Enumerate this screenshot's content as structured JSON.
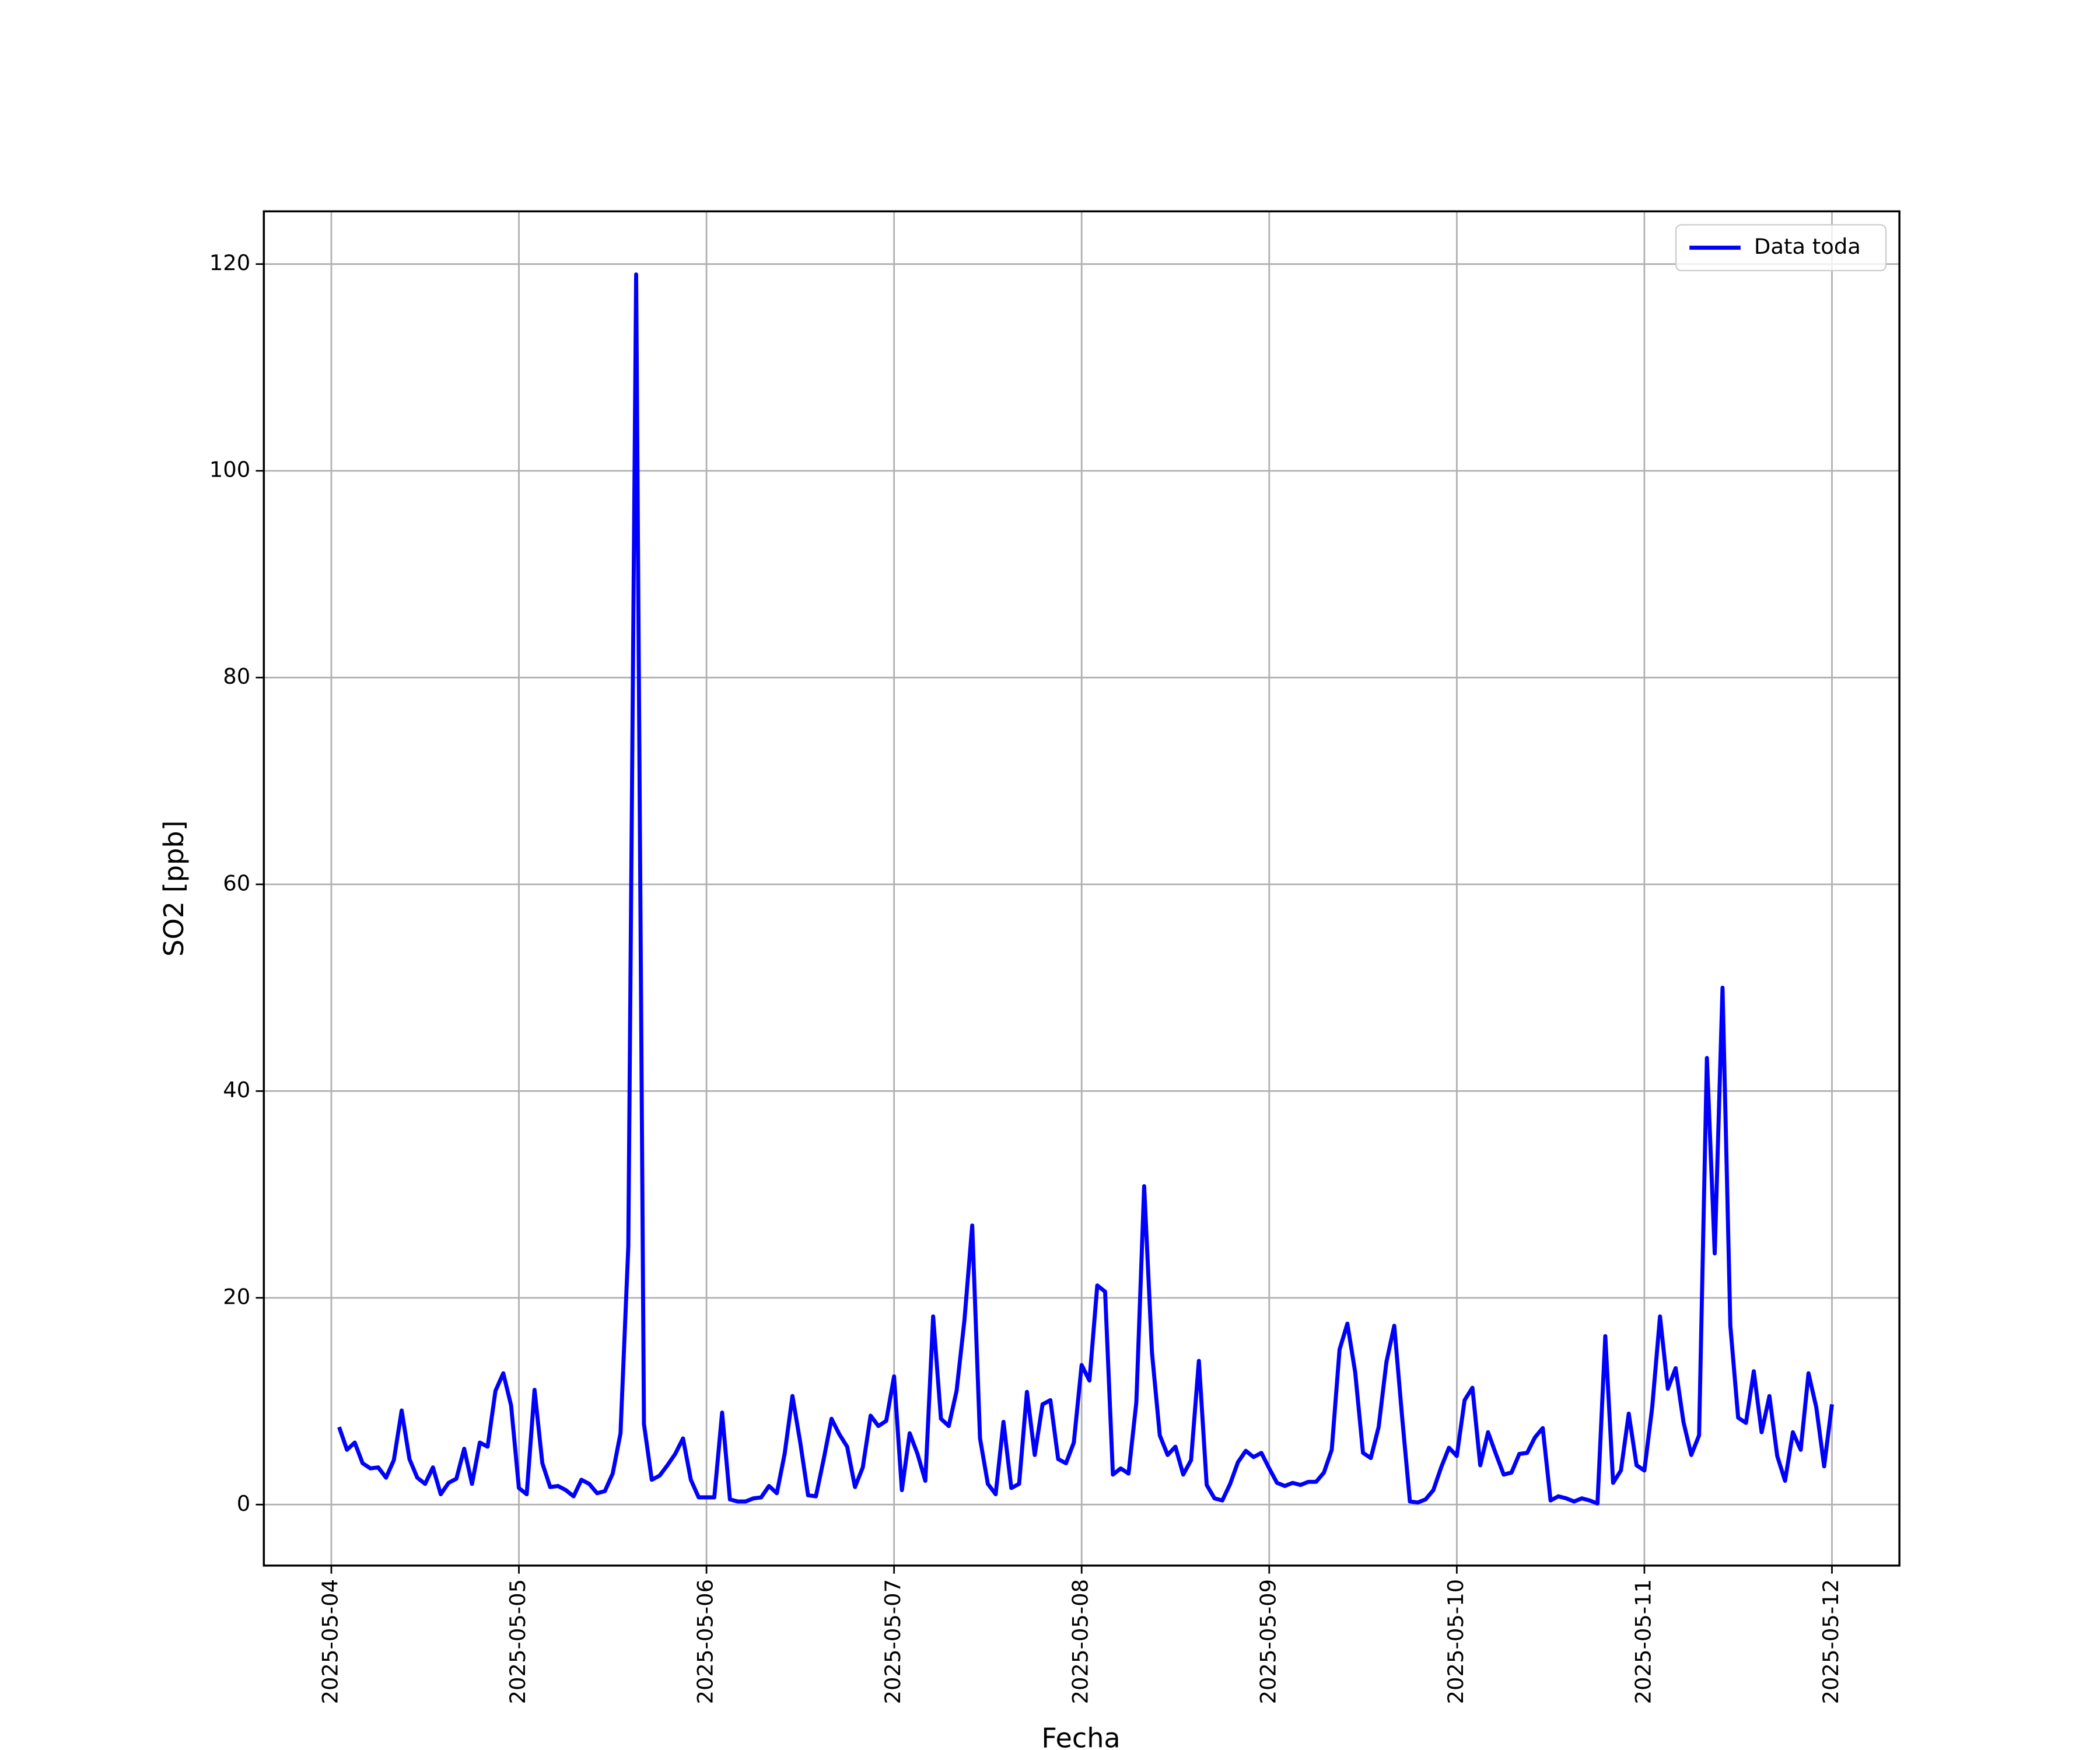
{
  "chart_data": {
    "type": "line",
    "x_label": "Fecha",
    "y_label": "SO2 [ppb]",
    "x": [
      "2025-05-04T01:00",
      "2025-05-04T02:00",
      "2025-05-04T03:00",
      "2025-05-04T04:00",
      "2025-05-04T05:00",
      "2025-05-04T06:00",
      "2025-05-04T07:00",
      "2025-05-04T08:00",
      "2025-05-04T09:00",
      "2025-05-04T10:00",
      "2025-05-04T11:00",
      "2025-05-04T12:00",
      "2025-05-04T13:00",
      "2025-05-04T14:00",
      "2025-05-04T15:00",
      "2025-05-04T16:00",
      "2025-05-04T17:00",
      "2025-05-04T18:00",
      "2025-05-04T19:00",
      "2025-05-04T20:00",
      "2025-05-04T21:00",
      "2025-05-04T22:00",
      "2025-05-04T23:00",
      "2025-05-05T00:00",
      "2025-05-05T01:00",
      "2025-05-05T02:00",
      "2025-05-05T03:00",
      "2025-05-05T04:00",
      "2025-05-05T05:00",
      "2025-05-05T06:00",
      "2025-05-05T07:00",
      "2025-05-05T08:00",
      "2025-05-05T09:00",
      "2025-05-05T10:00",
      "2025-05-05T11:00",
      "2025-05-05T12:00",
      "2025-05-05T13:00",
      "2025-05-05T14:00",
      "2025-05-05T15:00",
      "2025-05-05T16:00",
      "2025-05-05T17:00",
      "2025-05-05T18:00",
      "2025-05-05T19:00",
      "2025-05-05T20:00",
      "2025-05-05T21:00",
      "2025-05-05T22:00",
      "2025-05-05T23:00",
      "2025-05-06T00:00",
      "2025-05-06T01:00",
      "2025-05-06T02:00",
      "2025-05-06T03:00",
      "2025-05-06T04:00",
      "2025-05-06T05:00",
      "2025-05-06T06:00",
      "2025-05-06T07:00",
      "2025-05-06T08:00",
      "2025-05-06T09:00",
      "2025-05-06T10:00",
      "2025-05-06T11:00",
      "2025-05-06T12:00",
      "2025-05-06T13:00",
      "2025-05-06T14:00",
      "2025-05-06T15:00",
      "2025-05-06T16:00",
      "2025-05-06T17:00",
      "2025-05-06T18:00",
      "2025-05-06T19:00",
      "2025-05-06T20:00",
      "2025-05-06T21:00",
      "2025-05-06T22:00",
      "2025-05-06T23:00",
      "2025-05-07T00:00",
      "2025-05-07T01:00",
      "2025-05-07T02:00",
      "2025-05-07T03:00",
      "2025-05-07T04:00",
      "2025-05-07T05:00",
      "2025-05-07T06:00",
      "2025-05-07T07:00",
      "2025-05-07T08:00",
      "2025-05-07T09:00",
      "2025-05-07T10:00",
      "2025-05-07T11:00",
      "2025-05-07T12:00",
      "2025-05-07T13:00",
      "2025-05-07T14:00",
      "2025-05-07T15:00",
      "2025-05-07T16:00",
      "2025-05-07T17:00",
      "2025-05-07T18:00",
      "2025-05-07T19:00",
      "2025-05-07T20:00",
      "2025-05-07T21:00",
      "2025-05-07T22:00",
      "2025-05-07T23:00",
      "2025-05-08T00:00",
      "2025-05-08T01:00",
      "2025-05-08T02:00",
      "2025-05-08T03:00",
      "2025-05-08T04:00",
      "2025-05-08T05:00",
      "2025-05-08T06:00",
      "2025-05-08T07:00",
      "2025-05-08T08:00",
      "2025-05-08T09:00",
      "2025-05-08T10:00",
      "2025-05-08T11:00",
      "2025-05-08T12:00",
      "2025-05-08T13:00",
      "2025-05-08T14:00",
      "2025-05-08T15:00",
      "2025-05-08T16:00",
      "2025-05-08T17:00",
      "2025-05-08T18:00",
      "2025-05-08T19:00",
      "2025-05-08T20:00",
      "2025-05-08T21:00",
      "2025-05-08T22:00",
      "2025-05-08T23:00",
      "2025-05-09T00:00",
      "2025-05-09T01:00",
      "2025-05-09T02:00",
      "2025-05-09T03:00",
      "2025-05-09T04:00",
      "2025-05-09T05:00",
      "2025-05-09T06:00",
      "2025-05-09T07:00",
      "2025-05-09T08:00",
      "2025-05-09T09:00",
      "2025-05-09T10:00",
      "2025-05-09T11:00",
      "2025-05-09T12:00",
      "2025-05-09T13:00",
      "2025-05-09T14:00",
      "2025-05-09T15:00",
      "2025-05-09T16:00",
      "2025-05-09T17:00",
      "2025-05-09T18:00",
      "2025-05-09T19:00",
      "2025-05-09T20:00",
      "2025-05-09T21:00",
      "2025-05-09T22:00",
      "2025-05-09T23:00",
      "2025-05-10T00:00",
      "2025-05-10T01:00",
      "2025-05-10T02:00",
      "2025-05-10T03:00",
      "2025-05-10T04:00",
      "2025-05-10T05:00",
      "2025-05-10T06:00",
      "2025-05-10T07:00",
      "2025-05-10T08:00",
      "2025-05-10T09:00",
      "2025-05-10T10:00",
      "2025-05-10T11:00",
      "2025-05-10T12:00",
      "2025-05-10T13:00",
      "2025-05-10T14:00",
      "2025-05-10T15:00",
      "2025-05-10T16:00",
      "2025-05-10T17:00",
      "2025-05-10T18:00",
      "2025-05-10T19:00",
      "2025-05-10T20:00",
      "2025-05-10T21:00",
      "2025-05-10T22:00",
      "2025-05-10T23:00",
      "2025-05-11T00:00",
      "2025-05-11T01:00",
      "2025-05-11T02:00",
      "2025-05-11T03:00",
      "2025-05-11T04:00",
      "2025-05-11T05:00",
      "2025-05-11T06:00",
      "2025-05-11T07:00",
      "2025-05-11T08:00",
      "2025-05-11T09:00",
      "2025-05-11T10:00",
      "2025-05-11T11:00",
      "2025-05-11T12:00",
      "2025-05-11T13:00",
      "2025-05-11T14:00",
      "2025-05-11T15:00",
      "2025-05-11T16:00",
      "2025-05-11T17:00",
      "2025-05-11T18:00",
      "2025-05-11T19:00",
      "2025-05-11T20:00",
      "2025-05-11T21:00",
      "2025-05-11T22:00",
      "2025-05-11T23:00",
      "2025-05-12T00:00"
    ],
    "series": [
      {
        "name": "Data toda",
        "color": "#0000ff",
        "values": [
          7.5,
          5.3,
          6.0,
          4.0,
          3.5,
          3.6,
          2.6,
          4.3,
          9.1,
          4.4,
          2.6,
          2.0,
          3.6,
          1.0,
          2.1,
          2.5,
          5.4,
          2.0,
          6.0,
          5.6,
          11.0,
          12.7,
          9.6,
          1.6,
          1.0,
          11.1,
          4.0,
          1.7,
          1.8,
          1.4,
          0.8,
          2.4,
          2.0,
          1.1,
          1.3,
          3.0,
          6.9,
          25,
          119,
          7.8,
          2.4,
          2.8,
          3.8,
          4.9,
          6.4,
          2.4,
          0.7,
          0.7,
          0.7,
          8.9,
          0.5,
          0.3,
          0.3,
          0.6,
          0.7,
          1.8,
          1.1,
          4.9,
          10.5,
          6.0,
          0.9,
          0.8,
          4.4,
          8.3,
          6.8,
          5.6,
          1.7,
          3.6,
          8.6,
          7.6,
          8.1,
          12.4,
          1.4,
          6.9,
          4.9,
          2.3,
          18.2,
          8.3,
          7.6,
          11.0,
          17.8,
          27.0,
          6.4,
          2.0,
          1.0,
          8.0,
          1.6,
          2.0,
          10.9,
          4.8,
          9.7,
          10.1,
          4.4,
          4.0,
          6.0,
          13.5,
          12.0,
          21.2,
          20.6,
          2.9,
          3.5,
          3.0,
          9.9,
          30.8,
          14.7,
          6.7,
          4.8,
          5.6,
          2.9,
          4.3,
          13.9,
          1.9,
          0.6,
          0.4,
          2.0,
          4.1,
          5.2,
          4.6,
          5.0,
          3.5,
          2.1,
          1.8,
          2.1,
          1.9,
          2.2,
          2.2,
          3.1,
          5.3,
          15.0,
          17.5,
          12.8,
          5.0,
          4.5,
          7.5,
          13.8,
          17.3,
          8.5,
          0.3,
          0.2,
          0.5,
          1.4,
          3.6,
          5.5,
          4.7,
          10.1,
          11.3,
          3.8,
          7.0,
          4.9,
          2.9,
          3.1,
          4.9,
          5.0,
          6.5,
          7.4,
          0.4,
          0.8,
          0.6,
          0.3,
          0.6,
          0.4,
          0.1,
          16.3,
          2.1,
          3.3,
          8.8,
          3.8,
          3.3,
          9.4,
          18.2,
          11.2,
          13.2,
          8.0,
          4.8,
          6.7,
          43.2,
          24.3,
          50.0,
          17.3,
          8.4,
          7.9,
          12.9,
          7.0,
          10.5,
          4.7,
          2.3,
          7.0,
          5.3,
          12.7,
          9.4,
          3.7,
          9.7
        ]
      }
    ],
    "xlim": [
      "2025-05-03T15:22",
      "2025-05-12T08:38"
    ],
    "xticks": [
      "2025-05-04",
      "2025-05-05",
      "2025-05-06",
      "2025-05-07",
      "2025-05-08",
      "2025-05-09",
      "2025-05-10",
      "2025-05-11",
      "2025-05-12"
    ],
    "ylim": [
      -5.9,
      125.1
    ],
    "yticks": [
      0,
      20,
      40,
      60,
      80,
      100,
      120
    ],
    "grid": true,
    "legend": "upper right"
  }
}
